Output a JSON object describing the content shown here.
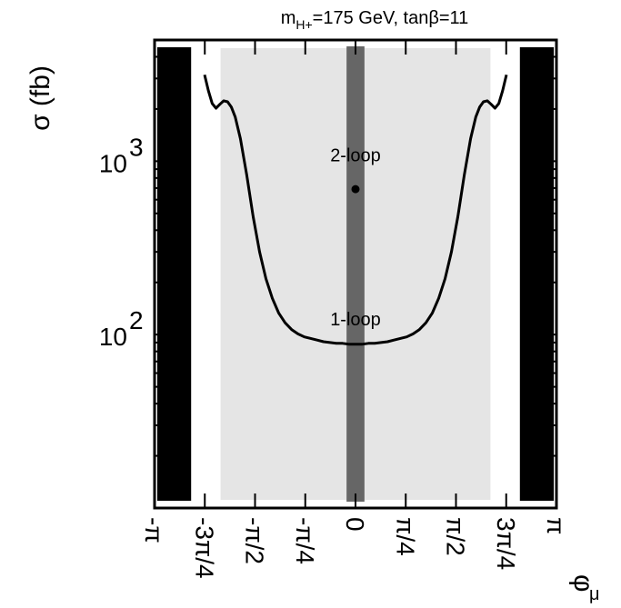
{
  "chart_data": {
    "type": "line",
    "title": {
      "prefix": "m",
      "subscript": "H+",
      "suffix": "=175 GeV, tanβ=11"
    },
    "xlabel": {
      "symbol": "φ",
      "subscript": "μ"
    },
    "ylabel": "σ (fb)",
    "yscale": "log",
    "xlim": [
      -3.1416,
      3.1416
    ],
    "ylim": [
      10,
      5000
    ],
    "x_ticks": [
      {
        "value": -3.1416,
        "label": "-π"
      },
      {
        "value": -2.3562,
        "label": "-3π/4"
      },
      {
        "value": -1.5708,
        "label": "-π/2"
      },
      {
        "value": -0.7854,
        "label": "-π/4"
      },
      {
        "value": 0,
        "label": "0"
      },
      {
        "value": 0.7854,
        "label": "π/4"
      },
      {
        "value": 1.5708,
        "label": "π/2"
      },
      {
        "value": 2.3562,
        "label": "3π/4"
      },
      {
        "value": 3.1416,
        "label": "π"
      }
    ],
    "y_major_ticks": [
      {
        "value": 100,
        "base": "10",
        "exp": "2"
      },
      {
        "value": 1000,
        "base": "10",
        "exp": "3"
      }
    ],
    "regions": [
      {
        "kind": "excluded-black",
        "x": [
          -3.1,
          -2.57
        ],
        "color": "#000000"
      },
      {
        "kind": "excluded-black",
        "x": [
          2.57,
          3.1
        ],
        "color": "#000000"
      },
      {
        "kind": "light-band",
        "x": [
          -2.11,
          2.11
        ],
        "color": "#e5e5e5"
      },
      {
        "kind": "dark-band",
        "x": [
          -0.14,
          0.14
        ],
        "color": "#666666"
      }
    ],
    "series": [
      {
        "label": "1-loop",
        "color": "#000000",
        "x": [
          -2.36,
          -2.3,
          -2.24,
          -2.18,
          -2.12,
          -2.06,
          -2.0,
          -1.94,
          -1.88,
          -1.8,
          -1.7,
          -1.6,
          -1.5,
          -1.4,
          -1.3,
          -1.2,
          -1.1,
          -1.0,
          -0.9,
          -0.8,
          -0.7,
          -0.6,
          -0.5,
          -0.4,
          -0.3,
          -0.2,
          -0.1,
          0.0,
          0.1,
          0.2,
          0.3,
          0.4,
          0.5,
          0.6,
          0.7,
          0.8,
          0.9,
          1.0,
          1.1,
          1.2,
          1.3,
          1.4,
          1.5,
          1.6,
          1.7,
          1.8,
          1.88,
          1.94,
          2.0,
          2.06,
          2.12,
          2.18,
          2.24,
          2.3,
          2.36
        ],
        "y": [
          3150,
          2550,
          2150,
          2020,
          2130,
          2230,
          2200,
          2050,
          1800,
          1350,
          830,
          480,
          300,
          210,
          162,
          133,
          117,
          107,
          101,
          97,
          95,
          93,
          91,
          90,
          89,
          89,
          88,
          88,
          88,
          89,
          89,
          90,
          91,
          93,
          95,
          97,
          101,
          107,
          117,
          133,
          162,
          210,
          300,
          480,
          830,
          1350,
          1800,
          2050,
          2200,
          2230,
          2130,
          2020,
          2150,
          2550,
          3150
        ]
      },
      {
        "label": "2-loop",
        "type": "point",
        "x": 0.0,
        "y": 690
      }
    ],
    "annotations": [
      {
        "text": "2-loop",
        "x": 0.0,
        "y": 1000
      },
      {
        "text": "1-loop",
        "x": 0.0,
        "y": 113
      }
    ],
    "grid": false
  }
}
